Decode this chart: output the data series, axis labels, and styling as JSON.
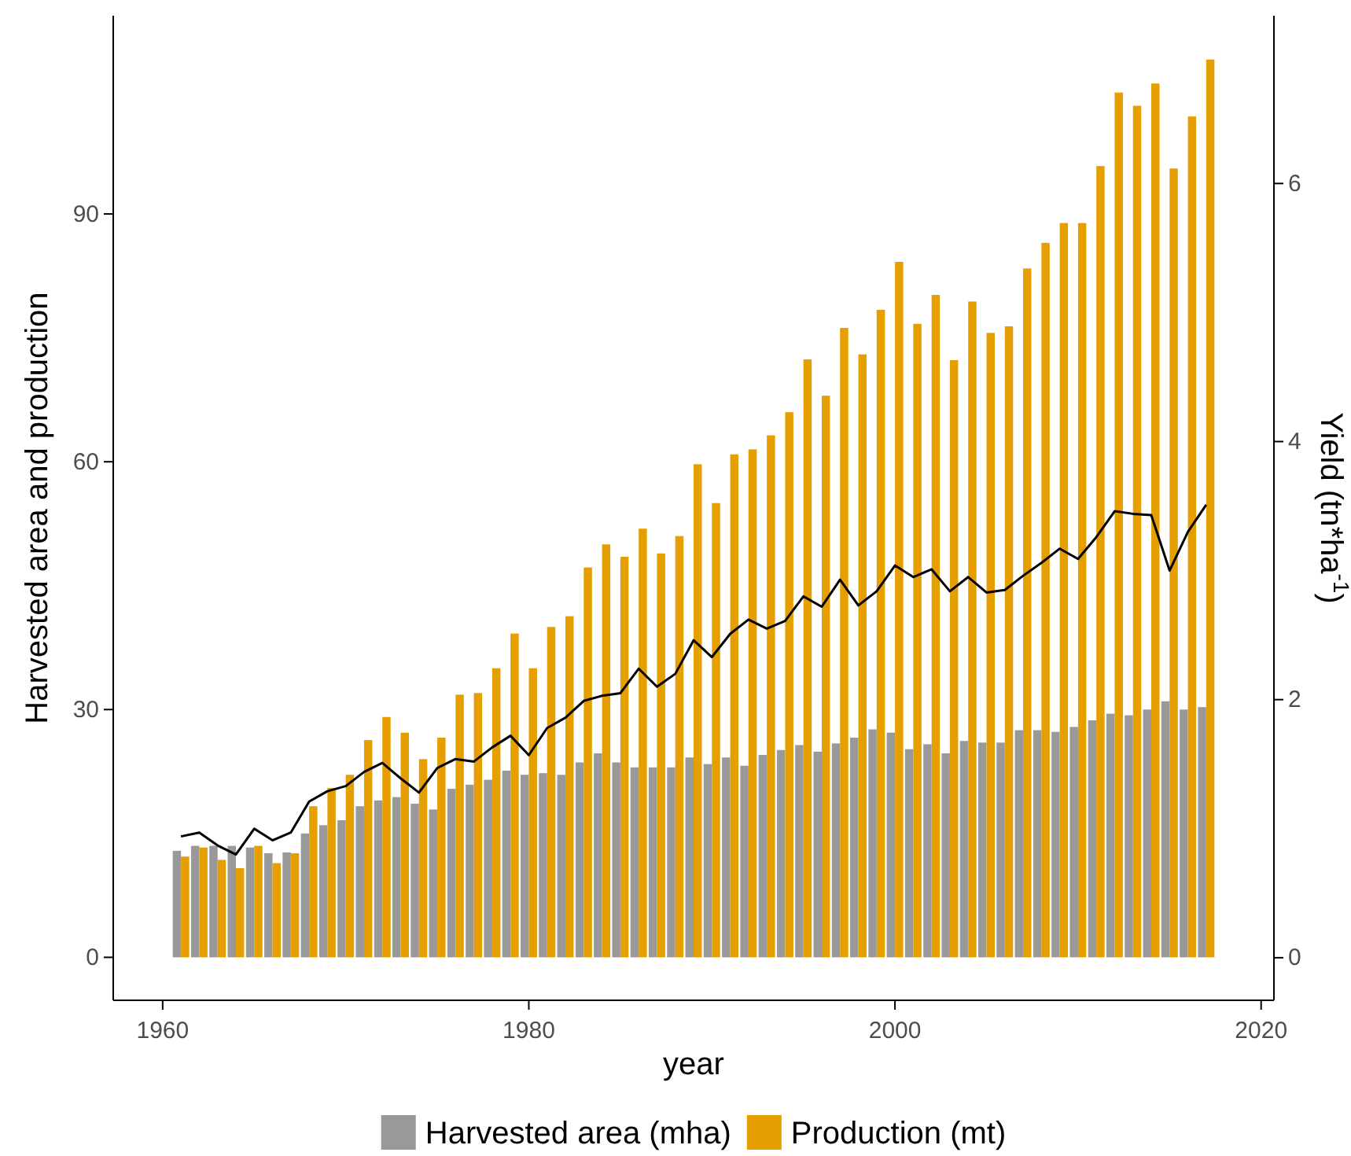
{
  "chart_data": {
    "type": "bar",
    "xlabel": "year",
    "ylabel": "Harvested area and production",
    "y2label": "Yield (tn*ha$^{-1}$)",
    "x": [
      1961,
      1962,
      1963,
      1964,
      1965,
      1966,
      1967,
      1968,
      1969,
      1970,
      1971,
      1972,
      1973,
      1974,
      1975,
      1976,
      1977,
      1978,
      1979,
      1980,
      1981,
      1982,
      1983,
      1984,
      1985,
      1986,
      1987,
      1988,
      1989,
      1990,
      1991,
      1992,
      1993,
      1994,
      1995,
      1996,
      1997,
      1998,
      1999,
      2000,
      2001,
      2002,
      2003,
      2004,
      2005,
      2006,
      2007,
      2008,
      2009,
      2010,
      2011,
      2012,
      2013,
      2014,
      2015,
      2016,
      2017
    ],
    "series": [
      {
        "name": "Harvested area (mha)",
        "color": "#999999",
        "values": [
          12.9,
          13.5,
          13.5,
          13.5,
          13.3,
          12.6,
          12.7,
          15.0,
          16.0,
          16.6,
          18.3,
          19.0,
          19.4,
          18.6,
          17.9,
          20.4,
          20.9,
          21.5,
          22.6,
          22.1,
          22.3,
          22.1,
          23.6,
          24.7,
          23.6,
          23.0,
          23.0,
          23.0,
          24.2,
          23.4,
          24.2,
          23.2,
          24.5,
          25.1,
          25.7,
          24.9,
          25.9,
          26.6,
          27.6,
          27.2,
          25.2,
          25.8,
          24.7,
          26.2,
          26.0,
          26.0,
          27.5,
          27.5,
          27.3,
          27.9,
          28.7,
          29.5,
          29.3,
          30.0,
          31.0,
          30.0,
          30.3
        ]
      },
      {
        "name": "Production (mt)",
        "color": "#e69f00",
        "values": [
          12.2,
          13.3,
          11.8,
          10.8,
          13.5,
          11.4,
          12.6,
          18.3,
          20.5,
          22.1,
          26.3,
          29.1,
          27.2,
          24.0,
          26.6,
          31.8,
          32.0,
          35.0,
          39.2,
          35.0,
          40.0,
          41.3,
          47.2,
          50.0,
          48.5,
          51.9,
          48.9,
          51.0,
          59.7,
          55.0,
          60.9,
          61.5,
          63.2,
          66.0,
          72.4,
          68.0,
          76.2,
          73.0,
          78.4,
          84.2,
          76.7,
          80.2,
          72.3,
          79.4,
          75.6,
          76.4,
          83.4,
          86.5,
          88.9,
          88.9,
          95.8,
          104.7,
          103.1,
          105.8,
          95.5,
          101.8,
          108.7
        ]
      },
      {
        "type": "line",
        "axis": "y2",
        "color": "#000000",
        "values": [
          0.94,
          0.97,
          0.87,
          0.8,
          1.0,
          0.91,
          0.97,
          1.21,
          1.29,
          1.33,
          1.44,
          1.51,
          1.39,
          1.28,
          1.47,
          1.54,
          1.52,
          1.63,
          1.72,
          1.57,
          1.78,
          1.86,
          1.99,
          2.03,
          2.05,
          2.24,
          2.1,
          2.2,
          2.46,
          2.33,
          2.51,
          2.62,
          2.55,
          2.61,
          2.8,
          2.72,
          2.93,
          2.73,
          2.84,
          3.04,
          2.95,
          3.01,
          2.84,
          2.95,
          2.83,
          2.85,
          2.96,
          3.06,
          3.17,
          3.09,
          3.26,
          3.46,
          3.44,
          3.43,
          3.0,
          3.3,
          3.51
        ]
      }
    ],
    "xlim": [
      1957.3,
      2020.7
    ],
    "xticks": [
      1960,
      1980,
      2000,
      2020
    ],
    "ylim": [
      -5.2,
      114
    ],
    "yticks": [
      0,
      30,
      60,
      90
    ],
    "y2lim": [
      -0.33,
      7.3
    ],
    "y2ticks": [
      0,
      2,
      4,
      6
    ],
    "grid": false,
    "legend": "bottom",
    "marker": "none",
    "line_style": "solid"
  }
}
